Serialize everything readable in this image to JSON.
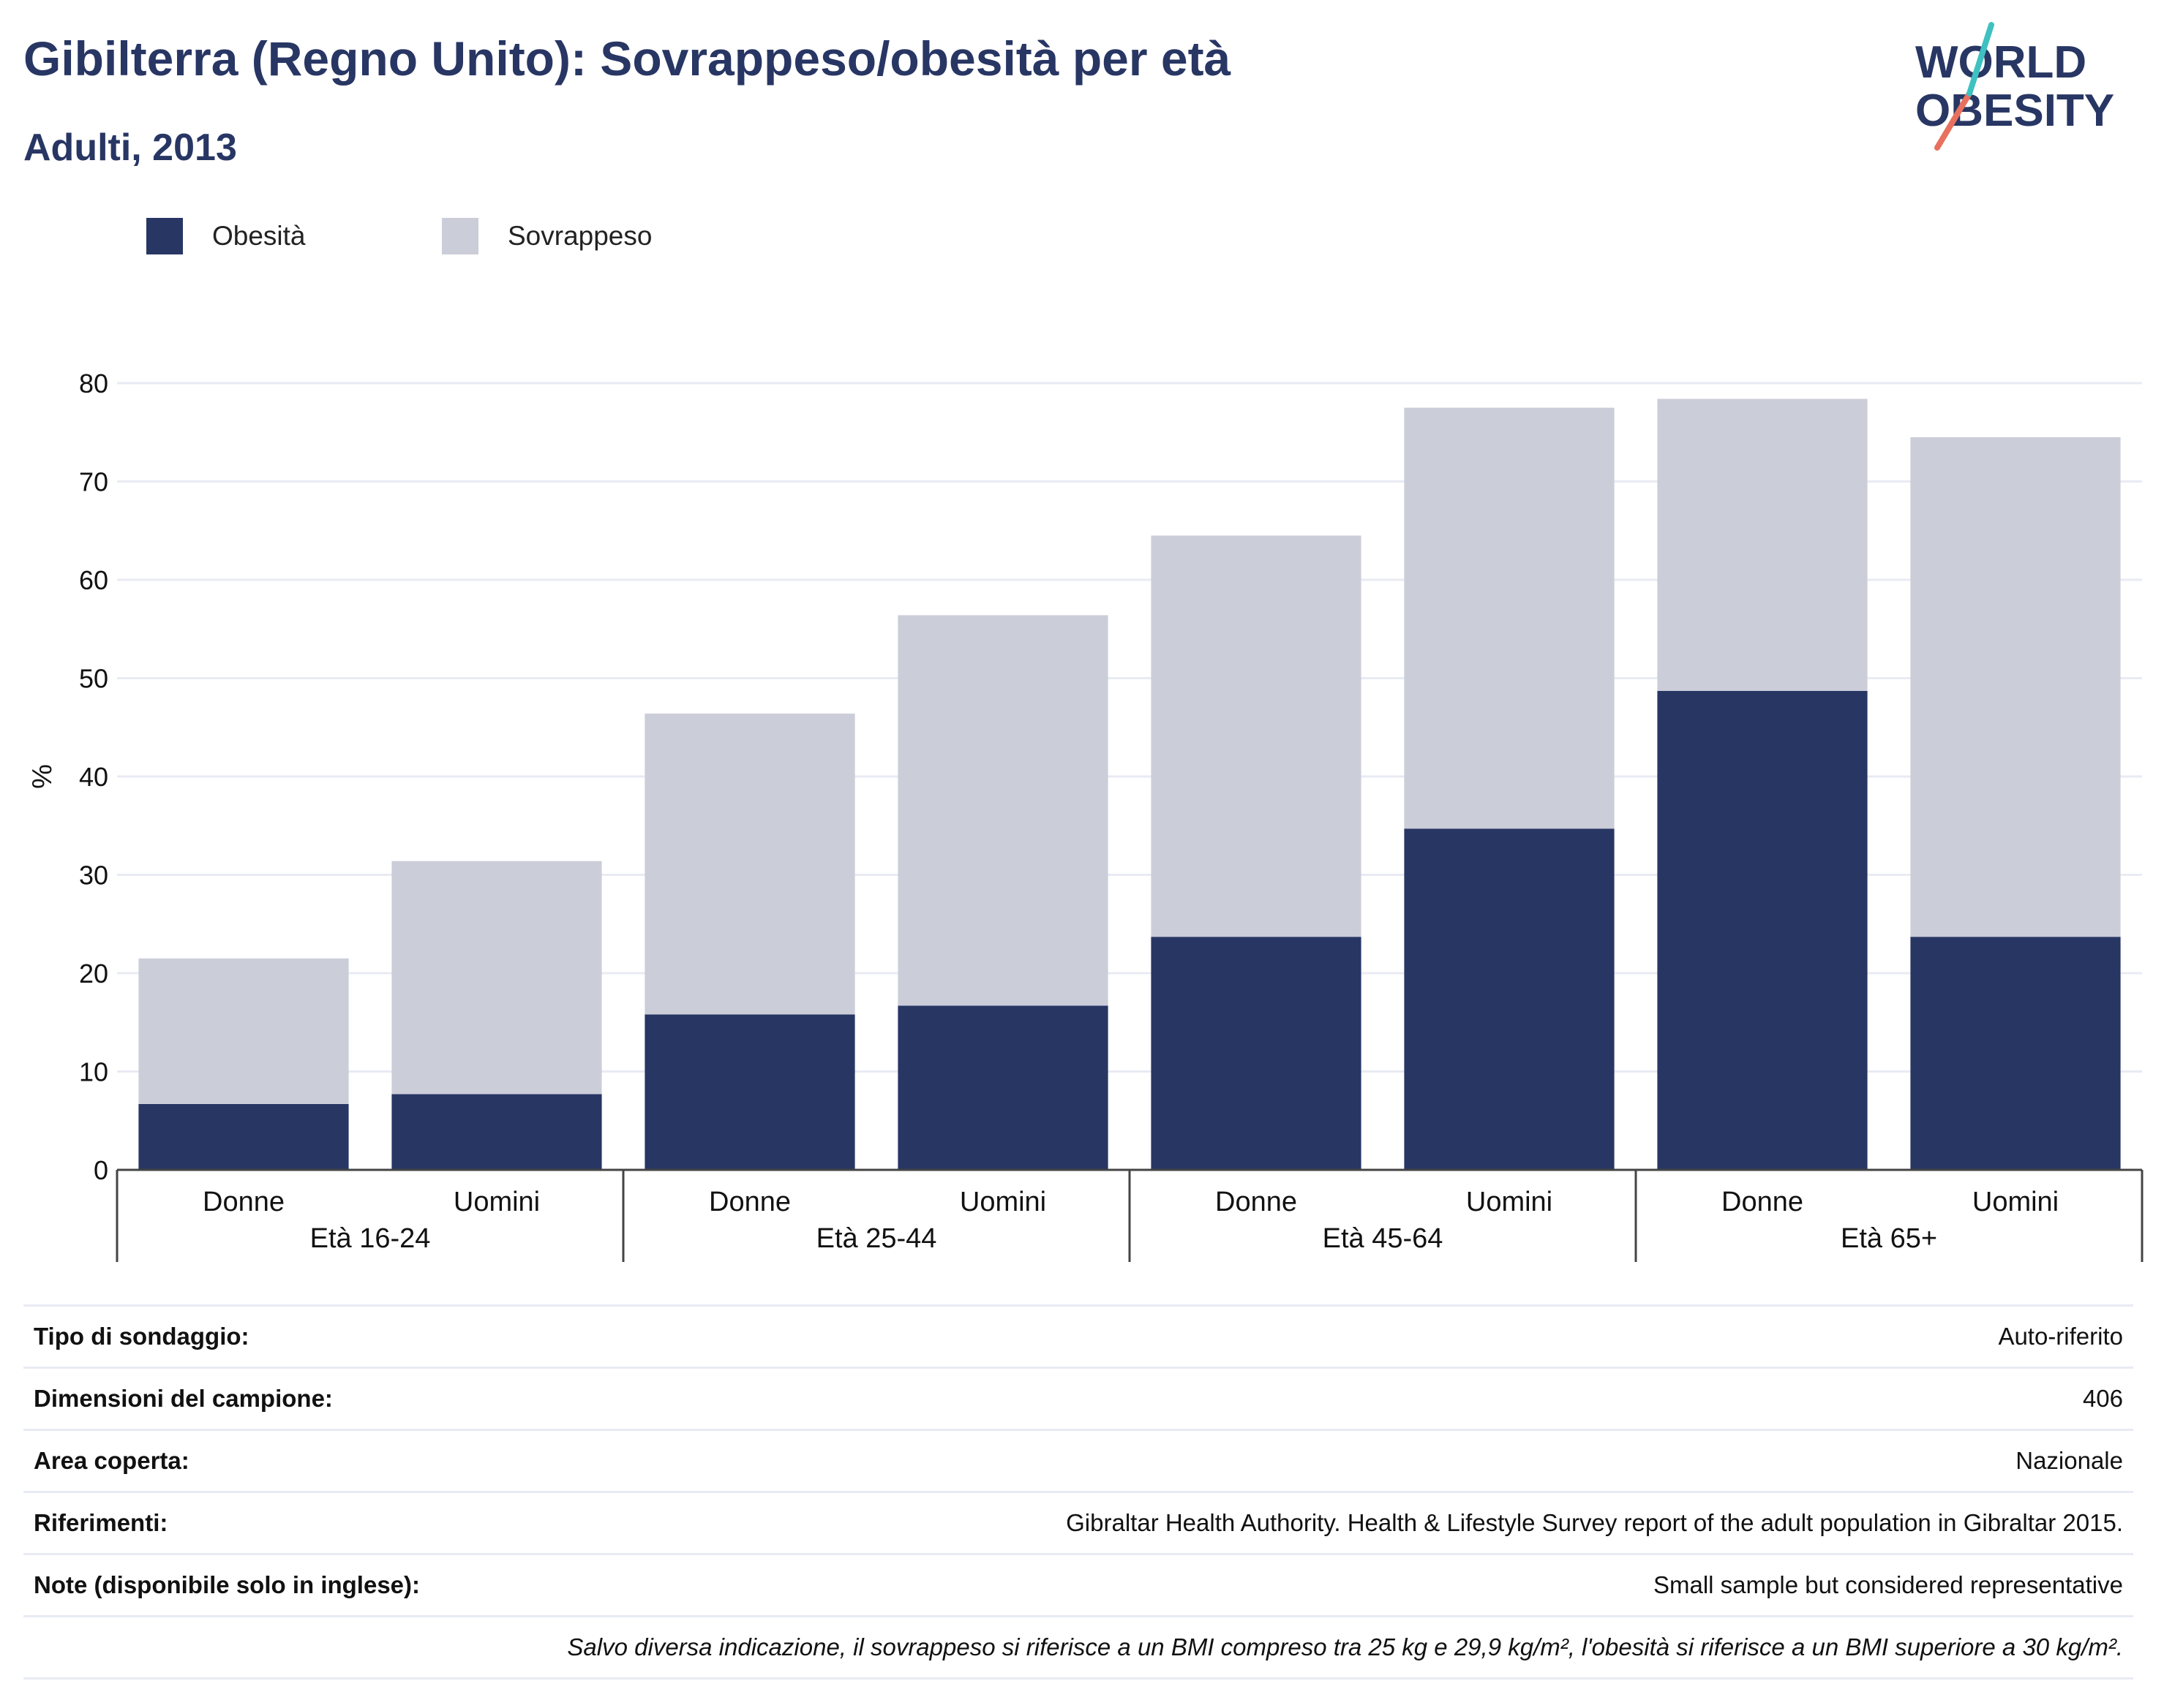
{
  "header": {
    "title": "Gibilterra (Regno Unito): Sovrappeso/obesità per età",
    "subtitle": "Adulti, 2013"
  },
  "logo": {
    "line1": "WORLD",
    "line2": "OBESITY",
    "accent_color": "#e8705f",
    "accent_color2": "#3ec1c0"
  },
  "legend": [
    {
      "label": "Obesità",
      "color": "#283664"
    },
    {
      "label": "Sovrappeso",
      "color": "#cbcdd9"
    }
  ],
  "chart_data": {
    "type": "bar",
    "stacked": true,
    "ylabel": "%",
    "ylim": [
      0,
      80
    ],
    "yticks": [
      0,
      10,
      20,
      30,
      40,
      50,
      60,
      70,
      80
    ],
    "grid": true,
    "legend_position": "top-left",
    "groups": [
      "Età 16-24",
      "Età 25-44",
      "Età 45-64",
      "Età 65+"
    ],
    "categories": [
      "Donne",
      "Uomini",
      "Donne",
      "Uomini",
      "Donne",
      "Uomini",
      "Donne",
      "Uomini"
    ],
    "group_of_category": [
      0,
      0,
      1,
      1,
      2,
      2,
      3,
      3
    ],
    "series": [
      {
        "name": "Obesità",
        "color": "#283664",
        "values": [
          6.7,
          7.7,
          15.8,
          16.7,
          23.7,
          34.7,
          48.7,
          23.7
        ]
      },
      {
        "name": "Sovrappeso",
        "color": "#cbcdd9",
        "values": [
          14.8,
          23.7,
          30.6,
          39.7,
          40.8,
          42.8,
          29.7,
          50.8
        ]
      }
    ]
  },
  "info_table": [
    {
      "key": "Tipo di sondaggio:",
      "value": "Auto-riferito"
    },
    {
      "key": "Dimensioni del campione:",
      "value": "406"
    },
    {
      "key": "Area coperta:",
      "value": "Nazionale"
    },
    {
      "key": "Riferimenti:",
      "value": "Gibraltar Health Authority. Health & Lifestyle Survey report of the adult population in Gibraltar 2015."
    },
    {
      "key": "Note (disponibile solo in inglese):",
      "value": "Small sample but considered representative"
    }
  ],
  "footnote": "Salvo diversa indicazione, il sovrappeso si riferisce a un BMI compreso tra 25 kg e 29,9 kg/m², l'obesità si riferisce a un BMI superiore a 30 kg/m²."
}
